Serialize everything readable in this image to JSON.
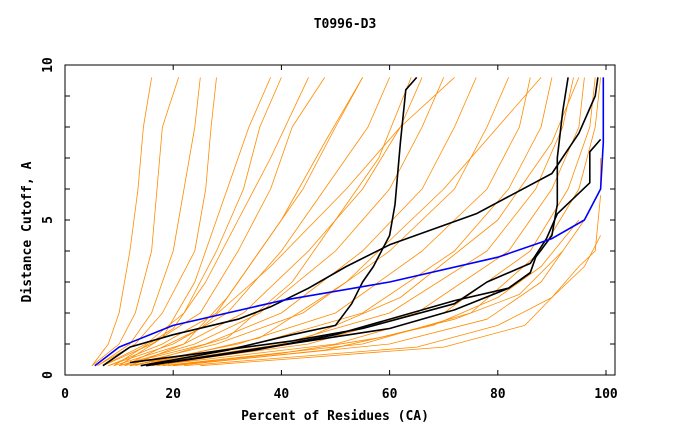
{
  "chart_data": {
    "type": "line",
    "title": "T0996-D3",
    "xlabel": "Percent of Residues (CA)",
    "ylabel": "Distance Cutoff, A",
    "xlim": [
      0,
      100
    ],
    "ylim": [
      0,
      10
    ],
    "xticks": [
      "0",
      "20",
      "40",
      "60",
      "80",
      "100"
    ],
    "yticks": [
      "0",
      "5",
      "10"
    ],
    "grid": false,
    "colors": {
      "models": "#ff8c00",
      "highlighted": "#000000",
      "reference": "#0000ff"
    },
    "orange_series": [
      [
        [
          5,
          0.3
        ],
        [
          8,
          1
        ],
        [
          10,
          2
        ],
        [
          12,
          4
        ],
        [
          13.5,
          6
        ],
        [
          14.5,
          8
        ],
        [
          16,
          9.6
        ]
      ],
      [
        [
          5,
          0.3
        ],
        [
          10,
          1
        ],
        [
          13,
          2
        ],
        [
          16,
          4
        ],
        [
          17,
          6
        ],
        [
          18,
          8
        ],
        [
          21,
          9.6
        ]
      ],
      [
        [
          6,
          0.3
        ],
        [
          12,
          1
        ],
        [
          16,
          2
        ],
        [
          20,
          4
        ],
        [
          22,
          6
        ],
        [
          24,
          8
        ],
        [
          25,
          9.6
        ]
      ],
      [
        [
          6,
          0.3
        ],
        [
          13,
          1
        ],
        [
          18,
          2
        ],
        [
          24,
          4
        ],
        [
          26,
          6
        ],
        [
          27,
          8
        ],
        [
          28,
          9.6
        ]
      ],
      [
        [
          7,
          0.3
        ],
        [
          15,
          1
        ],
        [
          22,
          2
        ],
        [
          28,
          4
        ],
        [
          33,
          6
        ],
        [
          36,
          8
        ],
        [
          40,
          9.6
        ]
      ],
      [
        [
          7,
          0.3
        ],
        [
          16,
          1
        ],
        [
          25,
          2
        ],
        [
          32,
          4
        ],
        [
          38,
          6
        ],
        [
          42,
          8
        ],
        [
          48,
          9.6
        ]
      ],
      [
        [
          8,
          0.3
        ],
        [
          18,
          1
        ],
        [
          28,
          2
        ],
        [
          36,
          4
        ],
        [
          44,
          6
        ],
        [
          50,
          8
        ],
        [
          55,
          9.6
        ]
      ],
      [
        [
          8,
          0.3
        ],
        [
          20,
          1
        ],
        [
          30,
          2
        ],
        [
          40,
          4
        ],
        [
          48,
          6
        ],
        [
          56,
          8
        ],
        [
          60,
          9.6
        ]
      ],
      [
        [
          9,
          0.3
        ],
        [
          22,
          1
        ],
        [
          33,
          2
        ],
        [
          45,
          4
        ],
        [
          55,
          6
        ],
        [
          62,
          8
        ],
        [
          66,
          9.6
        ]
      ],
      [
        [
          10,
          0.3
        ],
        [
          24,
          1
        ],
        [
          36,
          2
        ],
        [
          50,
          4
        ],
        [
          60,
          6
        ],
        [
          66,
          8
        ],
        [
          70,
          9.6
        ]
      ],
      [
        [
          10,
          0.3
        ],
        [
          26,
          1
        ],
        [
          40,
          2
        ],
        [
          55,
          4
        ],
        [
          66,
          6
        ],
        [
          72,
          8
        ],
        [
          76,
          9.6
        ]
      ],
      [
        [
          11,
          0.3
        ],
        [
          28,
          1
        ],
        [
          44,
          2
        ],
        [
          60,
          4
        ],
        [
          72,
          6
        ],
        [
          78,
          8
        ],
        [
          82,
          9.6
        ]
      ],
      [
        [
          12,
          0.3
        ],
        [
          32,
          1
        ],
        [
          50,
          2
        ],
        [
          66,
          4
        ],
        [
          78,
          6
        ],
        [
          84,
          8
        ],
        [
          86,
          9.6
        ]
      ],
      [
        [
          12,
          0.3
        ],
        [
          35,
          1
        ],
        [
          55,
          2
        ],
        [
          72,
          4
        ],
        [
          82,
          6
        ],
        [
          88,
          8
        ],
        [
          90,
          9.6
        ]
      ],
      [
        [
          14,
          0.3
        ],
        [
          40,
          1
        ],
        [
          60,
          2
        ],
        [
          78,
          4
        ],
        [
          87,
          6
        ],
        [
          92,
          8
        ],
        [
          94,
          9.6
        ]
      ],
      [
        [
          15,
          0.3
        ],
        [
          45,
          1
        ],
        [
          65,
          2
        ],
        [
          82,
          4
        ],
        [
          90,
          6
        ],
        [
          95,
          8
        ],
        [
          96,
          9.6
        ]
      ],
      [
        [
          16,
          0.3
        ],
        [
          50,
          1
        ],
        [
          70,
          2
        ],
        [
          86,
          4
        ],
        [
          93,
          6
        ],
        [
          97,
          8
        ],
        [
          98,
          9.6
        ]
      ],
      [
        [
          18,
          0.3
        ],
        [
          55,
          1
        ],
        [
          75,
          2
        ],
        [
          88,
          4
        ],
        [
          95,
          6
        ],
        [
          98,
          8
        ],
        [
          99,
          9.6
        ]
      ],
      [
        [
          20,
          0.3
        ],
        [
          60,
          1
        ],
        [
          78,
          1.8
        ],
        [
          88,
          3
        ],
        [
          96,
          5
        ],
        [
          99,
          6
        ],
        [
          99,
          7
        ]
      ],
      [
        [
          22,
          0.3
        ],
        [
          65,
          0.9
        ],
        [
          80,
          1.6
        ],
        [
          90,
          2.5
        ],
        [
          95,
          3.5
        ],
        [
          98,
          4
        ],
        [
          99,
          5.8
        ]
      ],
      [
        [
          25,
          0.3
        ],
        [
          70,
          0.9
        ],
        [
          85,
          1.6
        ],
        [
          90,
          2.5
        ],
        [
          96,
          3.5
        ],
        [
          99,
          4.5
        ]
      ],
      [
        [
          13,
          0.3
        ],
        [
          30,
          1.2
        ],
        [
          42,
          3
        ],
        [
          50,
          5
        ],
        [
          58,
          7
        ],
        [
          64,
          9.6
        ]
      ],
      [
        [
          9,
          0.3
        ],
        [
          20,
          1.5
        ],
        [
          26,
          3
        ],
        [
          32,
          5
        ],
        [
          38,
          7
        ],
        [
          45,
          9.6
        ]
      ],
      [
        [
          11,
          0.3
        ],
        [
          25,
          1.5
        ],
        [
          38,
          3.5
        ],
        [
          52,
          6
        ],
        [
          62,
          8
        ],
        [
          72,
          9.6
        ]
      ],
      [
        [
          14,
          0.3
        ],
        [
          36,
          1.2
        ],
        [
          52,
          3
        ],
        [
          70,
          6
        ],
        [
          80,
          8
        ],
        [
          88,
          9.6
        ]
      ],
      [
        [
          17,
          0.3
        ],
        [
          42,
          1
        ],
        [
          62,
          2.5
        ],
        [
          80,
          5
        ],
        [
          90,
          7.5
        ],
        [
          95,
          9.6
        ]
      ],
      [
        [
          20,
          0.3
        ],
        [
          48,
          0.8
        ],
        [
          68,
          1.6
        ],
        [
          80,
          2.5
        ],
        [
          88,
          3.5
        ],
        [
          95,
          5
        ]
      ],
      [
        [
          19,
          0.3
        ],
        [
          40,
          0.7
        ],
        [
          58,
          1.2
        ],
        [
          72,
          1.8
        ],
        [
          84,
          2.6
        ],
        [
          92,
          4
        ]
      ],
      [
        [
          12,
          0.3
        ],
        [
          22,
          1
        ],
        [
          30,
          2.5
        ],
        [
          40,
          5
        ],
        [
          48,
          7.5
        ],
        [
          55,
          9.6
        ]
      ],
      [
        [
          10,
          0.3
        ],
        [
          18,
          1.2
        ],
        [
          24,
          3
        ],
        [
          30,
          6
        ],
        [
          34,
          8
        ],
        [
          38,
          9.6
        ]
      ]
    ],
    "black_series": [
      [
        [
          7,
          0.3
        ],
        [
          12,
          0.9
        ],
        [
          20,
          1.3
        ],
        [
          32,
          1.8
        ],
        [
          38,
          2.2
        ],
        [
          45,
          2.8
        ],
        [
          52,
          3.5
        ],
        [
          60,
          4.2
        ],
        [
          76,
          5.2
        ],
        [
          90,
          6.5
        ],
        [
          95,
          7.8
        ],
        [
          98,
          9.0
        ],
        [
          98.5,
          9.6
        ]
      ],
      [
        [
          14,
          0.3
        ],
        [
          30,
          0.8
        ],
        [
          42,
          1.3
        ],
        [
          50,
          1.6
        ],
        [
          53,
          2.3
        ],
        [
          55,
          3.0
        ],
        [
          57,
          3.5
        ],
        [
          60,
          4.5
        ],
        [
          61,
          5.5
        ],
        [
          62,
          7.5
        ],
        [
          63,
          9.2
        ],
        [
          65,
          9.6
        ]
      ],
      [
        [
          19,
          0.4
        ],
        [
          35,
          0.8
        ],
        [
          50,
          1.3
        ],
        [
          72,
          2.4
        ],
        [
          82,
          2.8
        ],
        [
          86,
          3.3
        ],
        [
          87,
          3.8
        ],
        [
          90,
          4.5
        ],
        [
          91,
          5.5
        ],
        [
          91,
          7
        ],
        [
          92,
          8.5
        ],
        [
          93,
          9.6
        ]
      ],
      [
        [
          12,
          0.4
        ],
        [
          25,
          0.7
        ],
        [
          42,
          1.1
        ],
        [
          55,
          1.5
        ],
        [
          72,
          2.3
        ],
        [
          78,
          3
        ],
        [
          86,
          3.6
        ],
        [
          89,
          4.4
        ],
        [
          91,
          5.2
        ],
        [
          97,
          6.2
        ],
        [
          97,
          7.2
        ],
        [
          99,
          7.6
        ]
      ],
      [
        [
          15,
          0.3
        ],
        [
          30,
          0.7
        ],
        [
          45,
          1.1
        ],
        [
          60,
          1.5
        ],
        [
          72,
          2.1
        ],
        [
          82,
          2.8
        ],
        [
          86,
          3.3
        ]
      ]
    ],
    "blue_series": [
      [
        5.5,
        0.3
      ],
      [
        10,
        0.9
      ],
      [
        20,
        1.6
      ],
      [
        40,
        2.4
      ],
      [
        60,
        3.0
      ],
      [
        80,
        3.8
      ],
      [
        90,
        4.4
      ],
      [
        96,
        5.0
      ],
      [
        99,
        6.0
      ],
      [
        99.5,
        7.5
      ],
      [
        99.5,
        9.6
      ]
    ]
  }
}
